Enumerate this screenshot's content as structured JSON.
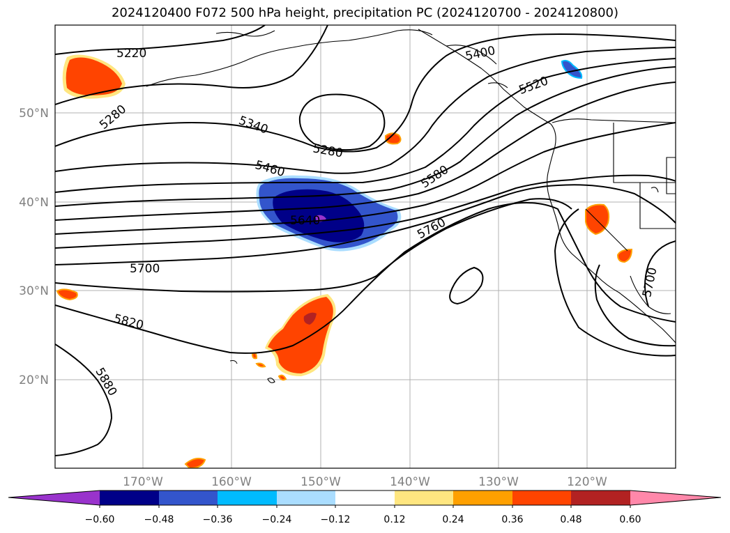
{
  "title": "2024120400 F072 500 hPa height, precipitation PC (2024120700 - 2024120800)",
  "map": {
    "lat_ticks": [
      "50°N",
      "40°N",
      "30°N",
      "20°N"
    ],
    "lon_ticks": [
      "170°W",
      "160°W",
      "150°W",
      "140°W",
      "130°W",
      "120°W"
    ],
    "gridlines": true,
    "contour_labels": [
      "5220",
      "5280",
      "5340",
      "5280",
      "5460",
      "5640",
      "5700",
      "5820",
      "5880",
      "5400",
      "5520",
      "5580",
      "5760",
      "5700"
    ],
    "precip_fields": [
      {
        "region": "Aleutians west",
        "category": "0.36-0.48"
      },
      {
        "region": "Gulf of Alaska small cell",
        "category": "0.36-0.48"
      },
      {
        "region": "Central North Pacific low",
        "category": "-0.60 to -0.48"
      },
      {
        "region": "Southwest of Hawaii",
        "category": "0.36-0.60"
      },
      {
        "region": "Northern California",
        "category": "0.36-0.48"
      },
      {
        "region": "Southern California",
        "category": "0.36-0.48"
      },
      {
        "region": "British Columbia coast",
        "category": "-0.36 to -0.24"
      }
    ]
  },
  "colorbar": {
    "ticks": [
      "−0.60",
      "−0.48",
      "−0.36",
      "−0.24",
      "−0.12",
      "0.12",
      "0.24",
      "0.36",
      "0.48",
      "0.60"
    ],
    "colors": [
      "#9933cc",
      "#000088",
      "#3355cc",
      "#00bbff",
      "#aaddff",
      "#ffffff",
      "#ffe680",
      "#ffa000",
      "#ff4400",
      "#b22222",
      "#ff88aa"
    ]
  }
}
